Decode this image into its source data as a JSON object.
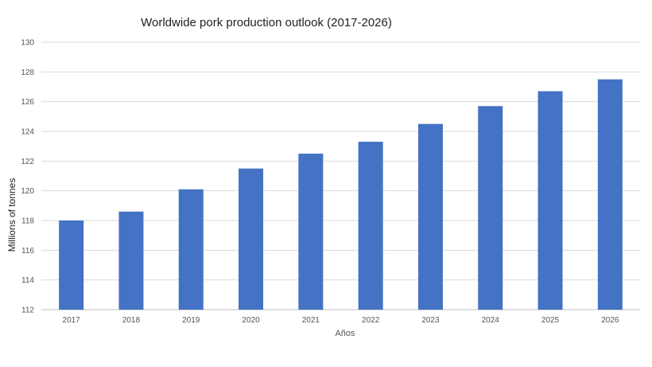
{
  "chart_data": {
    "type": "bar",
    "title": "Worldwide pork production outlook (2017-2026)",
    "xlabel": "Años",
    "ylabel": "Millions of tonnes",
    "categories": [
      "2017",
      "2018",
      "2019",
      "2020",
      "2021",
      "2022",
      "2023",
      "2024",
      "2025",
      "2026"
    ],
    "values": [
      118.0,
      118.6,
      120.1,
      121.5,
      122.5,
      123.3,
      124.5,
      125.7,
      126.7,
      127.5
    ],
    "ylim": [
      112,
      130
    ],
    "yticks": [
      "112",
      "114",
      "116",
      "118",
      "120",
      "122",
      "124",
      "126",
      "128",
      "130"
    ],
    "grid": true,
    "legend": "none",
    "bar_color": "#4472C4",
    "grid_color": "#D9D9D9"
  }
}
